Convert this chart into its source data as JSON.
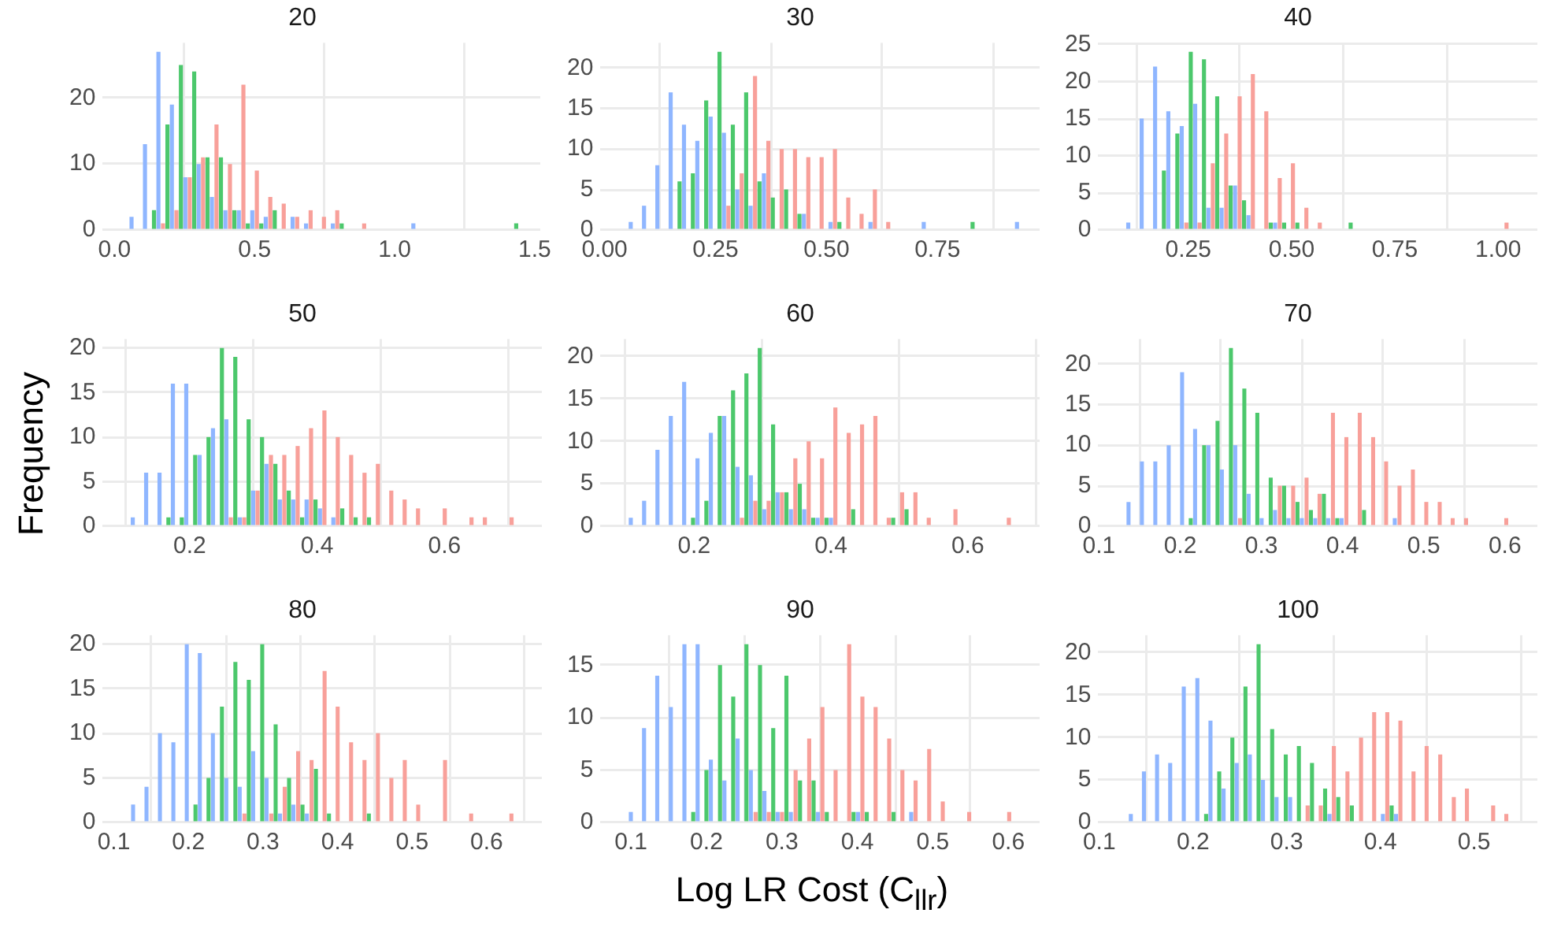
{
  "chart_data": [
    {
      "type": "histogram",
      "title": "20",
      "grid": true,
      "xlim": [
        -0.045,
        1.52
      ],
      "xticks": [
        {
          "value": 0,
          "label": "0.0"
        },
        {
          "value": 0.5,
          "label": "0.5"
        },
        {
          "value": 1,
          "label": "1.0"
        },
        {
          "value": 1.5,
          "label": "1.5"
        }
      ],
      "ylim": [
        0,
        28.35
      ],
      "yticks": [
        0,
        10,
        20
      ],
      "bins": [
        0.021,
        0.069,
        0.117,
        0.165,
        0.213,
        0.261,
        0.308,
        0.356,
        0.404,
        0.452,
        0.5,
        0.548,
        0.596,
        0.644,
        0.692,
        0.74,
        0.787,
        0.835,
        0.883,
        0.931,
        0.979,
        1.027,
        1.075,
        1.123,
        1.171,
        1.219,
        1.266,
        1.314,
        1.362,
        1.41,
        1.458
      ],
      "series": [
        {
          "color": "#f8a09a",
          "values": [
            0,
            0,
            0,
            1,
            3,
            8,
            11,
            16,
            10,
            22,
            9,
            5,
            4,
            2,
            3,
            2,
            3,
            0,
            1,
            0,
            0,
            0,
            0,
            0,
            0,
            0,
            0,
            0,
            0,
            0
          ]
        },
        {
          "color": "#4cc86c",
          "values": [
            0,
            0,
            3,
            16,
            25,
            24,
            11,
            11,
            3,
            1,
            1,
            3,
            0,
            0,
            0,
            0,
            1,
            0,
            0,
            0,
            0,
            0,
            0,
            0,
            0,
            0,
            0,
            0,
            0,
            1
          ]
        },
        {
          "color": "#8fb6ff",
          "values": [
            2,
            13,
            27,
            19,
            8,
            10,
            5,
            3,
            3,
            3,
            2,
            0,
            2,
            1,
            0,
            1,
            0,
            0,
            0,
            0,
            0,
            1,
            0,
            0,
            0,
            0,
            0,
            0,
            0,
            0
          ]
        }
      ]
    },
    {
      "type": "histogram",
      "title": "30",
      "grid": true,
      "xlim": [
        -0.011,
        0.98
      ],
      "xticks": [
        {
          "value": 0,
          "label": "0.00"
        },
        {
          "value": 0.25,
          "label": "0.25"
        },
        {
          "value": 0.5,
          "label": "0.50"
        },
        {
          "value": 0.75,
          "label": "0.75"
        }
      ],
      "ylim": [
        0,
        23.1
      ],
      "yticks": [
        0,
        5,
        10,
        15,
        20
      ],
      "bins": [
        0.034,
        0.064,
        0.094,
        0.124,
        0.154,
        0.184,
        0.214,
        0.244,
        0.274,
        0.304,
        0.334,
        0.364,
        0.394,
        0.424,
        0.454,
        0.484,
        0.514,
        0.544,
        0.574,
        0.604,
        0.634,
        0.664,
        0.694,
        0.724,
        0.754,
        0.784,
        0.814,
        0.844,
        0.874,
        0.904,
        0.934
      ],
      "series": [
        {
          "color": "#f8a09a",
          "values": [
            0,
            0,
            0,
            0,
            0,
            0,
            0,
            0,
            3,
            7,
            19,
            11,
            10,
            10,
            9,
            9,
            10,
            4,
            2,
            5,
            1,
            0,
            0,
            0,
            0,
            0,
            0,
            0,
            0,
            0
          ]
        },
        {
          "color": "#4cc86c",
          "values": [
            0,
            0,
            0,
            0,
            6,
            7,
            16,
            22,
            13,
            17,
            6,
            4,
            5,
            2,
            0,
            0,
            1,
            0,
            0,
            0,
            0,
            0,
            0,
            0,
            0,
            0,
            1,
            0,
            0,
            0
          ]
        },
        {
          "color": "#8fb6ff",
          "values": [
            1,
            3,
            8,
            17,
            13,
            11,
            14,
            12,
            5,
            3,
            7,
            0,
            0,
            2,
            0,
            1,
            0,
            0,
            1,
            0,
            0,
            0,
            1,
            0,
            0,
            0,
            0,
            0,
            0,
            1
          ]
        }
      ]
    },
    {
      "type": "histogram",
      "title": "40",
      "grid": true,
      "xlim": [
        0.03,
        1.095
      ],
      "xticks": [
        {
          "value": 0.25,
          "label": "0.25"
        },
        {
          "value": 0.5,
          "label": "0.50"
        },
        {
          "value": 0.75,
          "label": "0.75"
        },
        {
          "value": 1,
          "label": "1.00"
        }
      ],
      "ylim": [
        0,
        25.2
      ],
      "yticks": [
        0,
        5,
        10,
        15,
        20,
        25
      ],
      "bins": [
        0.078,
        0.11,
        0.143,
        0.175,
        0.207,
        0.24,
        0.272,
        0.304,
        0.336,
        0.369,
        0.401,
        0.433,
        0.466,
        0.498,
        0.53,
        0.563,
        0.595,
        0.627,
        0.659,
        1.015,
        1.047
      ],
      "series": [
        {
          "color": "#f8a09a",
          "values": [
            0,
            0,
            0,
            0,
            0,
            1,
            1,
            9,
            13,
            18,
            21,
            16,
            7,
            9,
            3,
            1,
            0,
            0,
            0,
            1
          ]
        },
        {
          "color": "#4cc86c",
          "values": [
            0,
            0,
            0,
            8,
            13,
            24,
            23,
            18,
            6,
            4,
            0,
            1,
            1,
            1,
            0,
            0,
            0,
            1,
            0,
            0
          ]
        },
        {
          "color": "#8fb6ff",
          "values": [
            1,
            15,
            22,
            16,
            14,
            17,
            3,
            3,
            6,
            2,
            0,
            1,
            0,
            0,
            0,
            0,
            0,
            0,
            0,
            0
          ]
        }
      ]
    },
    {
      "type": "histogram",
      "title": "50",
      "ylabel": "Frequency",
      "grid": true,
      "xlim": [
        0.062,
        0.753
      ],
      "xticks": [
        0.2,
        0.4,
        0.6
      ],
      "ylim": [
        0,
        21
      ],
      "yticks": [
        0,
        5,
        10,
        15,
        20
      ],
      "bins": [
        0.093,
        0.114,
        0.135,
        0.156,
        0.177,
        0.198,
        0.219,
        0.24,
        0.261,
        0.282,
        0.303,
        0.324,
        0.345,
        0.366,
        0.387,
        0.408,
        0.429,
        0.45,
        0.471,
        0.492,
        0.513,
        0.534,
        0.555,
        0.576,
        0.597,
        0.618,
        0.639,
        0.66,
        0.681,
        0.702,
        0.723
      ],
      "series": [
        {
          "color": "#f8a09a",
          "values": [
            0,
            0,
            0,
            0,
            0,
            0,
            0,
            0,
            1,
            1,
            4,
            8,
            8,
            9,
            11,
            13,
            10,
            8,
            6,
            7,
            4,
            3,
            2,
            0,
            2,
            0,
            1,
            1,
            0,
            1
          ]
        },
        {
          "color": "#4cc86c",
          "values": [
            0,
            0,
            0,
            1,
            1,
            8,
            10,
            20,
            19,
            12,
            10,
            7,
            4,
            1,
            3,
            0,
            2,
            1,
            1,
            0,
            0,
            0,
            0,
            0,
            0,
            0,
            0,
            0,
            0,
            0
          ]
        },
        {
          "color": "#8fb6ff",
          "values": [
            1,
            6,
            6,
            16,
            16,
            8,
            11,
            12,
            1,
            4,
            7,
            3,
            3,
            3,
            2,
            1,
            0,
            0,
            0,
            0,
            0,
            0,
            0,
            0,
            0,
            0,
            0,
            0,
            0,
            0
          ]
        }
      ]
    },
    {
      "type": "histogram",
      "title": "60",
      "grid": true,
      "xlim": [
        0.062,
        0.705
      ],
      "xticks": [
        0.2,
        0.4,
        0.6
      ],
      "ylim": [
        0,
        22.05
      ],
      "yticks": [
        0,
        5,
        10,
        15,
        20
      ],
      "bins": [
        0.091,
        0.111,
        0.13,
        0.15,
        0.169,
        0.189,
        0.208,
        0.228,
        0.247,
        0.267,
        0.286,
        0.306,
        0.325,
        0.345,
        0.364,
        0.384,
        0.403,
        0.423,
        0.442,
        0.462,
        0.481,
        0.501,
        0.52,
        0.54,
        0.559,
        0.579,
        0.598,
        0.657,
        0.676
      ],
      "series": [
        {
          "color": "#f8a09a",
          "values": [
            0,
            0,
            0,
            0,
            0,
            0,
            0,
            0,
            0,
            1,
            3,
            3,
            4,
            8,
            10,
            8,
            14,
            11,
            12,
            13,
            1,
            4,
            4,
            1,
            0,
            2,
            0,
            1
          ]
        },
        {
          "color": "#4cc86c",
          "values": [
            0,
            0,
            0,
            0,
            0,
            1,
            3,
            13,
            16,
            18,
            21,
            12,
            4,
            5,
            1,
            1,
            0,
            2,
            0,
            0,
            1,
            2,
            0,
            0,
            0,
            0,
            0,
            0
          ]
        },
        {
          "color": "#8fb6ff",
          "values": [
            1,
            3,
            9,
            13,
            17,
            8,
            11,
            13,
            7,
            6,
            2,
            4,
            2,
            2,
            1,
            1,
            0,
            0,
            0,
            0,
            0,
            0,
            0,
            0,
            0,
            0,
            0,
            0
          ]
        }
      ]
    },
    {
      "type": "histogram",
      "title": "70",
      "grid": true,
      "xlim": [
        0.098,
        0.64
      ],
      "xticks": [
        0.1,
        0.2,
        0.3,
        0.4,
        0.5,
        0.6
      ],
      "ylim": [
        0,
        23.1
      ],
      "yticks": [
        0,
        5,
        10,
        15,
        20
      ],
      "bins": [
        0.123,
        0.139,
        0.156,
        0.172,
        0.189,
        0.205,
        0.221,
        0.238,
        0.254,
        0.271,
        0.287,
        0.303,
        0.32,
        0.336,
        0.353,
        0.369,
        0.385,
        0.402,
        0.418,
        0.435,
        0.451,
        0.467,
        0.484,
        0.5,
        0.517,
        0.533,
        0.549,
        0.566,
        0.599,
        0.615
      ],
      "series": [
        {
          "color": "#f8a09a",
          "values": [
            0,
            0,
            0,
            0,
            0,
            0,
            0,
            0,
            0,
            1,
            0,
            0,
            5,
            5,
            6,
            4,
            14,
            11,
            14,
            11,
            8,
            5,
            7,
            3,
            3,
            1,
            1,
            0,
            1
          ]
        },
        {
          "color": "#4cc86c",
          "values": [
            0,
            0,
            0,
            0,
            0,
            1,
            10,
            13,
            22,
            17,
            14,
            6,
            5,
            3,
            2,
            4,
            1,
            0,
            2,
            0,
            0,
            0,
            0,
            0,
            0,
            0,
            0,
            0,
            0
          ]
        },
        {
          "color": "#8fb6ff",
          "values": [
            3,
            8,
            8,
            10,
            19,
            12,
            10,
            7,
            10,
            4,
            1,
            2,
            1,
            1,
            1,
            1,
            1,
            0,
            0,
            0,
            1,
            0,
            0,
            0,
            0,
            0,
            0,
            0,
            0
          ]
        }
      ]
    },
    {
      "type": "histogram",
      "title": "80",
      "grid": true,
      "xlim": [
        0.084,
        0.674
      ],
      "xticks": [
        0.1,
        0.2,
        0.3,
        0.4,
        0.5,
        0.6
      ],
      "ylim": [
        0,
        21
      ],
      "yticks": [
        0,
        5,
        10,
        15,
        20
      ],
      "bins": [
        0.111,
        0.129,
        0.147,
        0.165,
        0.183,
        0.201,
        0.218,
        0.236,
        0.254,
        0.272,
        0.29,
        0.308,
        0.326,
        0.344,
        0.362,
        0.38,
        0.397,
        0.415,
        0.433,
        0.451,
        0.469,
        0.487,
        0.505,
        0.523,
        0.541,
        0.559,
        0.576,
        0.594,
        0.63,
        0.648
      ],
      "series": [
        {
          "color": "#f8a09a",
          "values": [
            0,
            0,
            0,
            0,
            0,
            0,
            0,
            0,
            0,
            1,
            0,
            1,
            4,
            8,
            7,
            17,
            13,
            9,
            7,
            10,
            5,
            7,
            2,
            0,
            7,
            0,
            1,
            0,
            1
          ]
        },
        {
          "color": "#4cc86c",
          "values": [
            0,
            0,
            0,
            0,
            0,
            2,
            5,
            13,
            18,
            16,
            20,
            11,
            5,
            2,
            6,
            1,
            0,
            0,
            1,
            0,
            0,
            0,
            0,
            0,
            0,
            0,
            0,
            0,
            0
          ]
        },
        {
          "color": "#8fb6ff",
          "values": [
            2,
            4,
            10,
            9,
            20,
            19,
            10,
            5,
            4,
            8,
            5,
            1,
            2,
            1,
            0,
            0,
            0,
            0,
            0,
            0,
            0,
            0,
            0,
            0,
            0,
            0,
            0,
            0,
            0
          ]
        }
      ]
    },
    {
      "type": "histogram",
      "title": "90",
      "xlabel": "Log LR Cost (C$_{llr}$)",
      "grid": true,
      "xlim": [
        0.0585,
        0.6415
      ],
      "xticks": [
        0.1,
        0.2,
        0.3,
        0.4,
        0.5,
        0.6
      ],
      "ylim": [
        0,
        17.85
      ],
      "yticks": [
        0,
        5,
        10,
        15
      ],
      "bins": [
        0.085,
        0.103,
        0.12,
        0.138,
        0.156,
        0.174,
        0.191,
        0.209,
        0.227,
        0.244,
        0.262,
        0.28,
        0.297,
        0.315,
        0.333,
        0.351,
        0.368,
        0.386,
        0.404,
        0.421,
        0.439,
        0.457,
        0.474,
        0.492,
        0.51,
        0.528,
        0.545,
        0.563,
        0.598,
        0.616
      ],
      "series": [
        {
          "color": "#f8a09a",
          "values": [
            0,
            0,
            0,
            0,
            0,
            0,
            0,
            0,
            0,
            0,
            1,
            1,
            1,
            5,
            8,
            11,
            5,
            17,
            12,
            11,
            8,
            5,
            4,
            7,
            2,
            0,
            1,
            0,
            1
          ]
        },
        {
          "color": "#4cc86c",
          "values": [
            0,
            0,
            0,
            0,
            0,
            1,
            5,
            15,
            12,
            17,
            15,
            9,
            14,
            4,
            4,
            1,
            0,
            1,
            1,
            0,
            1,
            0,
            0,
            0,
            0,
            0,
            0,
            0,
            0
          ]
        },
        {
          "color": "#8fb6ff",
          "values": [
            1,
            9,
            14,
            11,
            17,
            17,
            6,
            4,
            8,
            5,
            3,
            1,
            1,
            0,
            1,
            0,
            0,
            1,
            0,
            0,
            0,
            1,
            0,
            0,
            0,
            0,
            0,
            0,
            0
          ]
        }
      ]
    },
    {
      "type": "histogram",
      "title": "100",
      "grid": true,
      "xlim": [
        0.098,
        0.5675
      ],
      "xticks": [
        0.1,
        0.2,
        0.3,
        0.4,
        0.5
      ],
      "ylim": [
        0,
        22.05
      ],
      "yticks": [
        0,
        5,
        10,
        15,
        20
      ],
      "bins": [
        0.122,
        0.136,
        0.15,
        0.164,
        0.178,
        0.193,
        0.207,
        0.221,
        0.235,
        0.249,
        0.263,
        0.277,
        0.292,
        0.306,
        0.32,
        0.334,
        0.348,
        0.362,
        0.377,
        0.391,
        0.405,
        0.419,
        0.433,
        0.447,
        0.461,
        0.476,
        0.49,
        0.504,
        0.518,
        0.532,
        0.546
      ],
      "series": [
        {
          "color": "#f8a09a",
          "values": [
            0,
            0,
            0,
            0,
            0,
            0,
            0,
            0,
            0,
            0,
            0,
            0,
            0,
            0,
            2,
            2,
            9,
            6,
            10,
            13,
            13,
            12,
            6,
            9,
            8,
            3,
            4,
            0,
            2,
            1
          ]
        },
        {
          "color": "#4cc86c",
          "values": [
            0,
            0,
            0,
            0,
            0,
            0,
            1,
            6,
            10,
            16,
            21,
            11,
            8,
            9,
            7,
            4,
            3,
            2,
            0,
            0,
            2,
            0,
            0,
            0,
            0,
            0,
            0,
            0,
            0,
            0
          ]
        },
        {
          "color": "#8fb6ff",
          "values": [
            1,
            6,
            8,
            7,
            16,
            17,
            12,
            4,
            7,
            8,
            5,
            3,
            3,
            0,
            0,
            1,
            0,
            0,
            0,
            1,
            1,
            0,
            0,
            0,
            0,
            0,
            0,
            0,
            0,
            0
          ]
        }
      ]
    }
  ]
}
